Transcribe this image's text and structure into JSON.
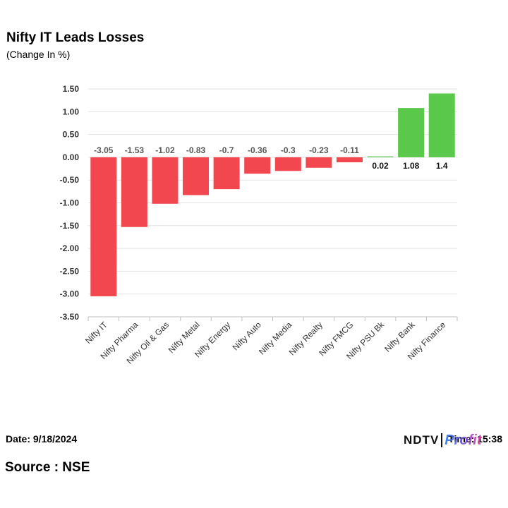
{
  "header": {
    "title": "Nifty IT Leads Losses",
    "subtitle": "(Change In %)"
  },
  "footer": {
    "date": "Date: 9/18/2024",
    "time": "Time: 15:38",
    "source": "Source : NSE",
    "logo_ndtv": "NDTV",
    "logo_profit": "Profit"
  },
  "colors": {
    "negative": "#f2474f",
    "positive": "#5ac84b",
    "grid": "#e2e2e2",
    "axis": "#bfbfbf",
    "negative_label": "#595959",
    "positive_label": "#111111"
  },
  "chart_data": {
    "type": "bar",
    "title": "Nifty IT Leads Losses",
    "subtitle": "(Change In %)",
    "categories": [
      "Nifty IT",
      "Nifty Pharma",
      "Nifty Oil & Gas",
      "Nifty Metal",
      "Nifty Energy",
      "Nifty Auto",
      "Nifty Media",
      "Nifty Realty",
      "Nifty FMCG",
      "Nifty PSU Bk",
      "Nifty Bank",
      "Nifty Finance"
    ],
    "values": [
      -3.05,
      -1.53,
      -1.02,
      -0.83,
      -0.7,
      -0.36,
      -0.3,
      -0.23,
      -0.11,
      0.02,
      1.08,
      1.4
    ],
    "data_labels": [
      "-3.05",
      "-1.53",
      "-1.02",
      "-0.83",
      "-0.7",
      "-0.36",
      "-0.3",
      "-0.23",
      "-0.11",
      "0.02",
      "1.08",
      "1.4"
    ],
    "ylim": [
      -3.5,
      1.5
    ],
    "yticks": [
      1.5,
      1.0,
      0.5,
      0.0,
      -0.5,
      -1.0,
      -1.5,
      -2.0,
      -2.5,
      -3.0,
      -3.5
    ],
    "ytick_labels": [
      "1.50",
      "1.00",
      "0.50",
      "0.00",
      "-0.50",
      "-1.00",
      "-1.50",
      "-2.00",
      "-2.50",
      "-3.00",
      "-3.50"
    ],
    "grid": true,
    "legend": "none"
  }
}
